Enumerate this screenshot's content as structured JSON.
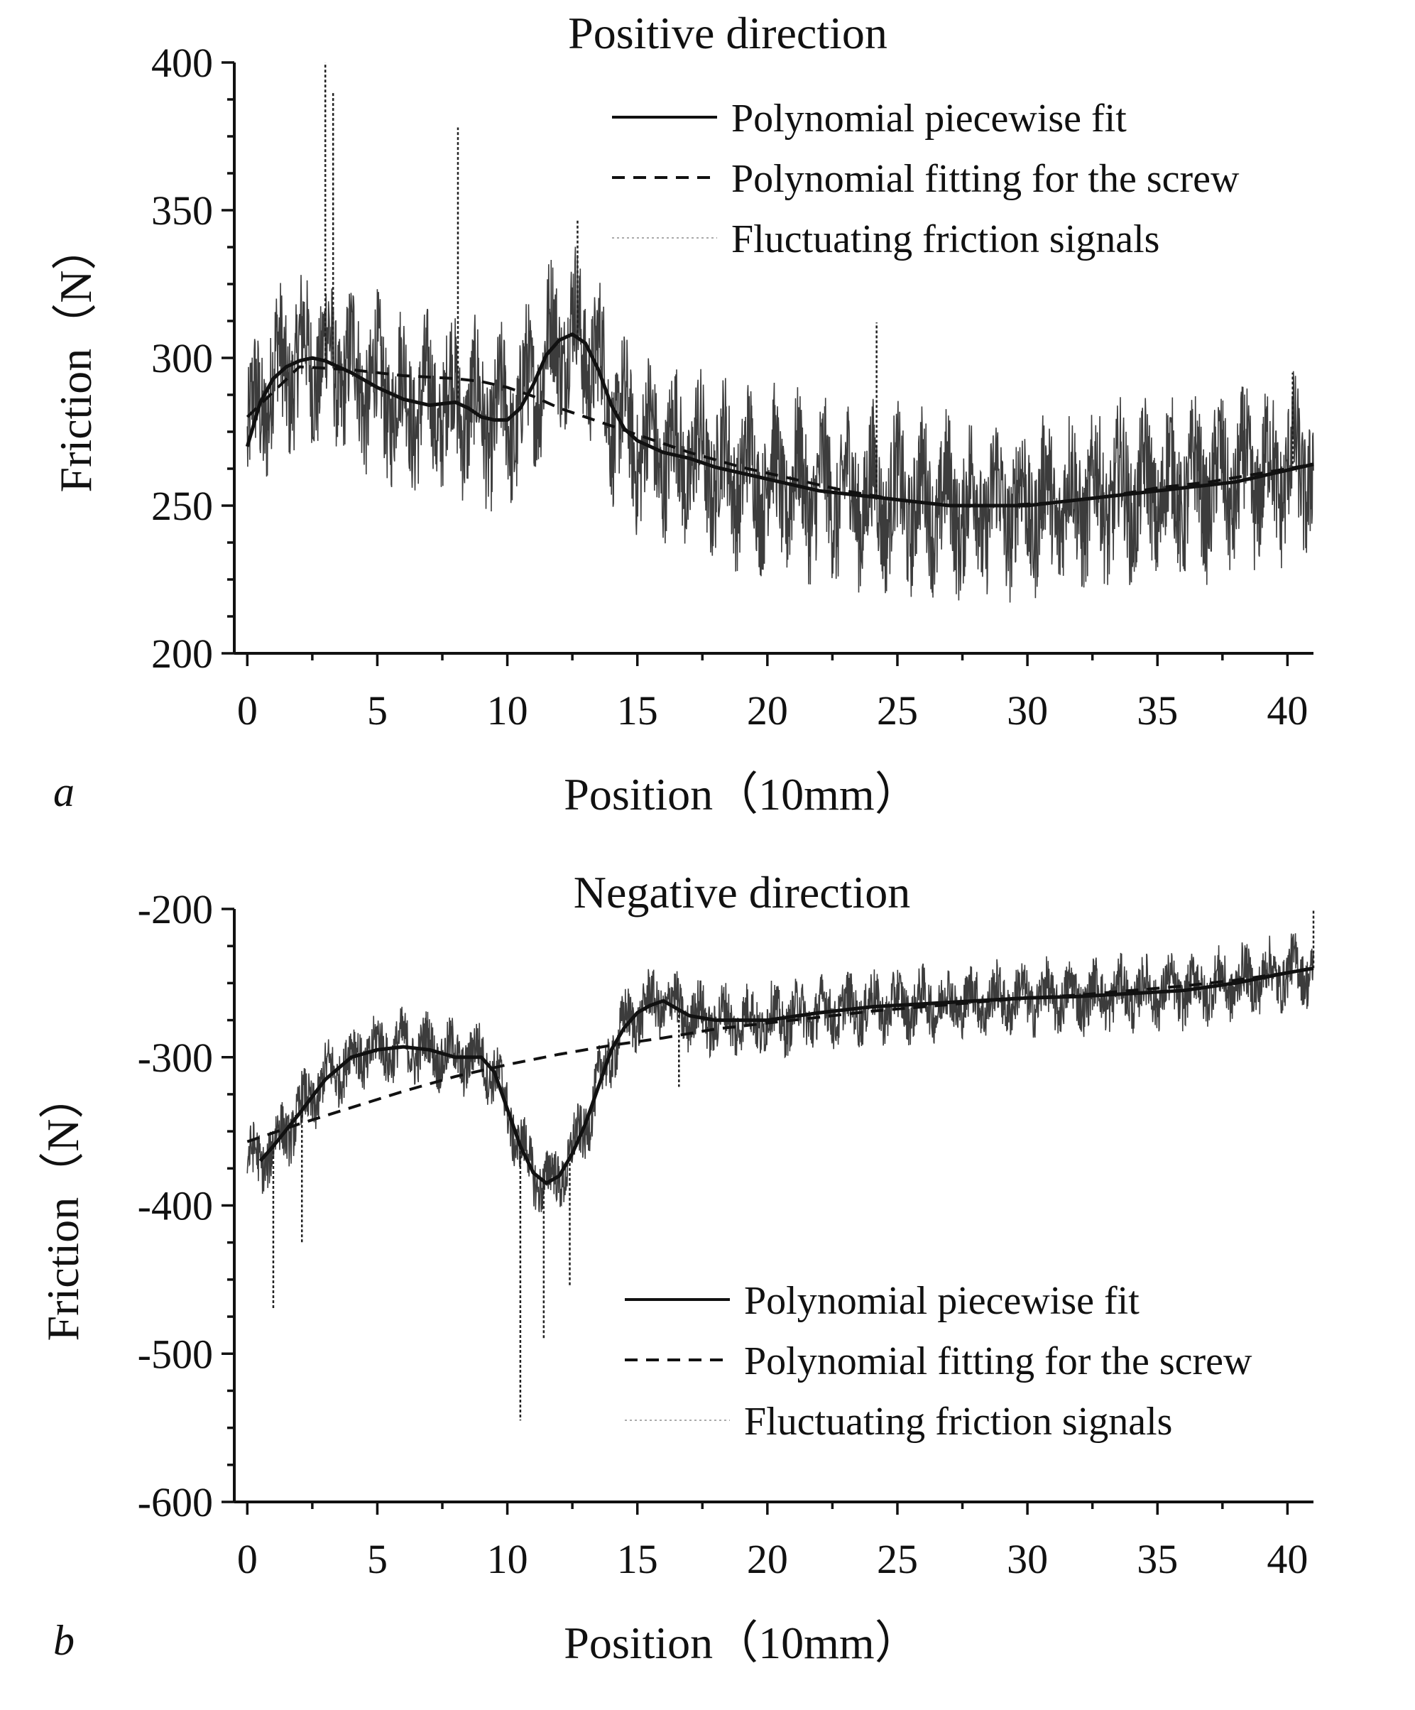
{
  "chart_data": [
    {
      "panel": "a",
      "type": "line",
      "title": "Positive direction",
      "xlabel": "Position（10mm）",
      "ylabel": "Friction（N）",
      "xlim": [
        -0.5,
        41
      ],
      "ylim": [
        200,
        400
      ],
      "xticks": [
        0,
        5,
        10,
        15,
        20,
        25,
        30,
        35,
        40
      ],
      "yticks": [
        200,
        250,
        300,
        350,
        400
      ],
      "legend_position": "top-right",
      "legend": [
        "Polynomial piecewise fit",
        "Polynomial fitting for the screw",
        "Fluctuating friction signals"
      ],
      "series": [
        {
          "name": "Polynomial piecewise fit",
          "style": "solid",
          "x": [
            0,
            0.5,
            1,
            1.5,
            2,
            2.5,
            3,
            3.5,
            4,
            5,
            6,
            7,
            8,
            8.5,
            9,
            9.5,
            10,
            10.5,
            11,
            11.5,
            12,
            12.5,
            13,
            13.5,
            14,
            14.5,
            15,
            16,
            17,
            18,
            19,
            20,
            21,
            22,
            23,
            24,
            25,
            26,
            27,
            28,
            29,
            30,
            31,
            32,
            33,
            34,
            35,
            36,
            37,
            38,
            39,
            40,
            41
          ],
          "y": [
            270,
            285,
            293,
            297,
            299,
            300,
            299,
            297,
            295,
            290,
            286,
            284,
            285,
            283,
            280,
            279,
            279,
            283,
            291,
            301,
            306,
            308,
            305,
            296,
            284,
            276,
            272,
            268,
            266,
            263,
            261,
            259,
            257,
            255,
            254,
            253,
            252,
            251,
            250,
            250,
            250,
            250,
            251,
            252,
            253,
            254,
            255,
            256,
            257,
            258,
            260,
            262,
            264
          ]
        },
        {
          "name": "Polynomial fitting for the screw",
          "style": "dashed",
          "x": [
            0,
            2,
            4,
            6,
            8,
            9,
            10,
            11,
            12,
            13,
            14,
            15,
            17,
            19,
            21,
            23,
            25,
            27,
            29,
            31,
            33,
            35,
            37,
            39,
            41
          ],
          "y": [
            280,
            297,
            296,
            294,
            293,
            292,
            290,
            287,
            283,
            280,
            277,
            274,
            268,
            263,
            259,
            255,
            252,
            250,
            250,
            251,
            253,
            256,
            258,
            261,
            264
          ]
        },
        {
          "name": "Fluctuating friction signals",
          "style": "noisy",
          "x_range": [
            0,
            41
          ],
          "noise_amplitude": 22,
          "spikes": [
            {
              "x": 3.0,
              "y": 400
            },
            {
              "x": 3.3,
              "y": 390
            },
            {
              "x": 8.1,
              "y": 378
            },
            {
              "x": 12.7,
              "y": 347
            },
            {
              "x": 24.2,
              "y": 312
            },
            {
              "x": 40.2,
              "y": 295
            }
          ]
        }
      ]
    },
    {
      "panel": "b",
      "type": "line",
      "title": "Negative direction",
      "xlabel": "Position（10mm）",
      "ylabel": "Friction（N）",
      "xlim": [
        -0.5,
        41
      ],
      "ylim": [
        -600,
        -200
      ],
      "xticks": [
        0,
        5,
        10,
        15,
        20,
        25,
        30,
        35,
        40
      ],
      "yticks": [
        -600,
        -500,
        -400,
        -300,
        -200
      ],
      "legend_position": "bottom-right",
      "legend": [
        "Polynomial piecewise fit",
        "Polynomial fitting for the screw",
        "Fluctuating friction signals"
      ],
      "series": [
        {
          "name": "Polynomial piecewise fit",
          "style": "solid",
          "x": [
            0.5,
            1,
            2,
            3,
            4,
            5,
            6,
            7,
            8,
            9,
            9.5,
            10,
            10.5,
            11,
            11.5,
            12,
            12.5,
            13,
            13.5,
            14,
            14.5,
            15,
            15.5,
            16,
            17,
            18,
            20,
            22,
            24,
            26,
            28,
            30,
            32,
            34,
            36,
            38,
            40,
            41
          ],
          "y": [
            -370,
            -360,
            -338,
            -315,
            -300,
            -295,
            -293,
            -295,
            -300,
            -300,
            -310,
            -335,
            -360,
            -378,
            -385,
            -380,
            -365,
            -345,
            -320,
            -295,
            -280,
            -270,
            -265,
            -262,
            -272,
            -275,
            -275,
            -270,
            -266,
            -264,
            -262,
            -260,
            -259,
            -257,
            -255,
            -250,
            -243,
            -240
          ]
        },
        {
          "name": "Polynomial fitting for the screw",
          "style": "dashed",
          "x": [
            0,
            2,
            4,
            6,
            8,
            10,
            12,
            14,
            16,
            18,
            20,
            22,
            24,
            26,
            28,
            30,
            32,
            34,
            36,
            38,
            40,
            41
          ],
          "y": [
            -357,
            -345,
            -334,
            -323,
            -313,
            -305,
            -298,
            -292,
            -287,
            -281,
            -277,
            -273,
            -269,
            -266,
            -263,
            -260,
            -258,
            -255,
            -252,
            -248,
            -243,
            -240
          ]
        },
        {
          "name": "Fluctuating friction signals",
          "style": "noisy",
          "x_range": [
            0,
            41
          ],
          "noise_amplitude": 18,
          "spikes": [
            {
              "x": 1.0,
              "y": -470
            },
            {
              "x": 2.1,
              "y": -425
            },
            {
              "x": 10.5,
              "y": -545
            },
            {
              "x": 11.4,
              "y": -490
            },
            {
              "x": 12.4,
              "y": -455
            },
            {
              "x": 16.6,
              "y": -320
            },
            {
              "x": 41,
              "y": -200
            }
          ]
        }
      ]
    }
  ]
}
